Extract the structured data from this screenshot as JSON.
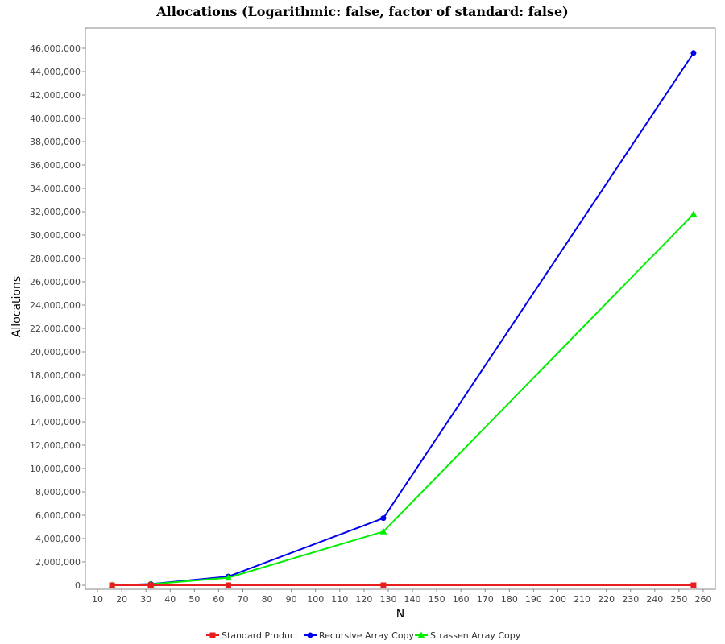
{
  "chart_data": {
    "type": "line",
    "title": "Allocations (Logarithmic: false, factor of standard: false)",
    "xlabel": "N",
    "ylabel": "Allocations",
    "xlim": [
      5,
      265
    ],
    "ylim": [
      0,
      46500000
    ],
    "xticks": [
      10,
      20,
      30,
      40,
      50,
      60,
      70,
      80,
      90,
      100,
      110,
      120,
      130,
      140,
      150,
      160,
      170,
      180,
      190,
      200,
      210,
      220,
      230,
      240,
      250,
      260
    ],
    "yticks": [
      0,
      2000000,
      4000000,
      6000000,
      8000000,
      10000000,
      12000000,
      14000000,
      16000000,
      18000000,
      20000000,
      22000000,
      24000000,
      26000000,
      28000000,
      30000000,
      32000000,
      34000000,
      36000000,
      38000000,
      40000000,
      42000000,
      44000000,
      46000000
    ],
    "ytick_labels": [
      "0",
      "2,000,000",
      "4,000,000",
      "6,000,000",
      "8,000,000",
      "10,000,000",
      "12,000,000",
      "14,000,000",
      "16,000,000",
      "18,000,000",
      "20,000,000",
      "22,000,000",
      "24,000,000",
      "26,000,000",
      "28,000,000",
      "30,000,000",
      "32,000,000",
      "34,000,000",
      "36,000,000",
      "38,000,000",
      "40,000,000",
      "42,000,000",
      "44,000,000",
      "46,000,000"
    ],
    "grid": false,
    "legend_position": "bottom",
    "series": [
      {
        "name": "Standard Product",
        "marker": "square",
        "color": "#e81e1e",
        "x": [
          16,
          32,
          64,
          128,
          256
        ],
        "y": [
          0,
          0,
          0,
          0,
          0
        ]
      },
      {
        "name": "Recursive Array Copy",
        "marker": "circle",
        "color": "#0000ee",
        "x": [
          16,
          32,
          64,
          128,
          256
        ],
        "y": [
          10000,
          100000,
          750000,
          5750000,
          45600000
        ]
      },
      {
        "name": "Strassen Array Copy",
        "marker": "triangle",
        "color": "#00ee00",
        "x": [
          16,
          32,
          64,
          128,
          256
        ],
        "y": [
          10000,
          90000,
          650000,
          4600000,
          31800000
        ]
      }
    ]
  }
}
